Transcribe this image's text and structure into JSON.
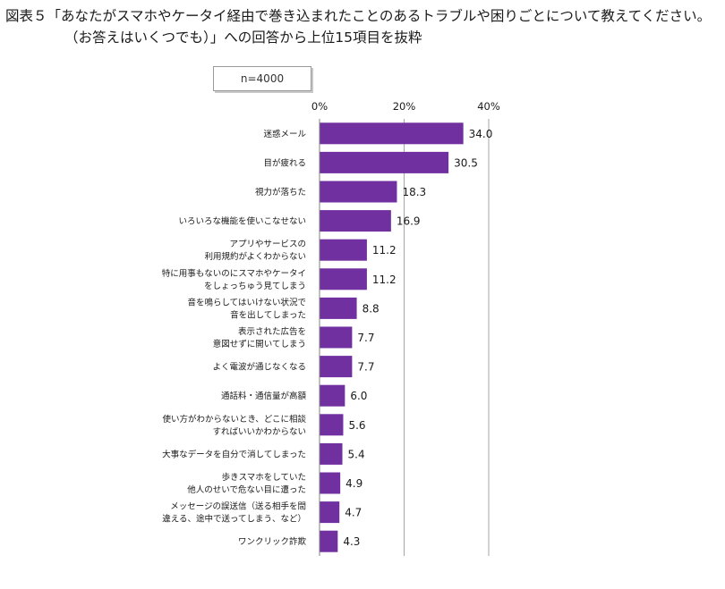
{
  "title": {
    "line1": "図表５「あなたがスマホやケータイ経由で巻き込まれたことのあるトラブルや困りごとについて教えてください。",
    "line2": "（お答えはいくつでも）」への回答から上位15項目を抜粋"
  },
  "sample_label": "n=4000",
  "colors": {
    "bar": "#7030a0",
    "grid": "#a6a6a6",
    "axis": "#808080"
  },
  "chart_data": {
    "type": "bar",
    "orientation": "horizontal",
    "xlim": [
      0,
      40
    ],
    "ticks": [
      "0%",
      "20%",
      "40%"
    ],
    "tick_values": [
      0,
      20,
      40
    ],
    "grid": true,
    "categories": [
      [
        "迷惑メール"
      ],
      [
        "目が疲れる"
      ],
      [
        "視力が落ちた"
      ],
      [
        "いろいろな機能を使いこなせない"
      ],
      [
        "アプリやサービスの",
        "利用規約がよくわからない"
      ],
      [
        "特に用事もないのにスマホやケータイ",
        "をしょっちゅう見てしまう"
      ],
      [
        "音を鳴らしてはいけない状況で",
        "音を出してしまった"
      ],
      [
        "表示された広告を",
        "意図せずに開いてしまう"
      ],
      [
        "よく電波が通じなくなる"
      ],
      [
        "通話料・通信量が高額"
      ],
      [
        "使い方がわからないとき、どこに相談",
        "すればいいかわからない"
      ],
      [
        "大事なデータを自分で消してしまった"
      ],
      [
        "歩きスマホをしていた",
        "他人のせいで危ない目に遭った"
      ],
      [
        "メッセージの誤送信（送る相手を間",
        "違える、途中で送ってしまう、など）"
      ],
      [
        "ワンクリック詐欺"
      ]
    ],
    "values": [
      34.0,
      30.5,
      18.3,
      16.9,
      11.2,
      11.2,
      8.8,
      7.7,
      7.7,
      6.0,
      5.6,
      5.4,
      4.9,
      4.7,
      4.3
    ],
    "value_labels": [
      "34.0",
      "30.5",
      "18.3",
      "16.9",
      "11.2",
      "11.2",
      "8.8",
      "7.7",
      "7.7",
      "6.0",
      "5.6",
      "5.4",
      "4.9",
      "4.7",
      "4.3"
    ]
  }
}
